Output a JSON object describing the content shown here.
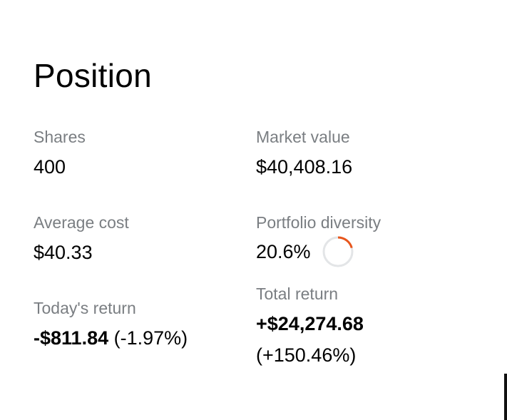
{
  "position": {
    "title": "Position",
    "shares": {
      "label": "Shares",
      "value": "400"
    },
    "market_value": {
      "label": "Market value",
      "value": "$40,408.16"
    },
    "average_cost": {
      "label": "Average cost",
      "value": "$40.33"
    },
    "portfolio_diversity": {
      "label": "Portfolio diversity",
      "value": "20.6%",
      "fraction": 0.206,
      "ring_color": "#e8561c",
      "track_color": "#e3e5e7"
    },
    "todays_return": {
      "label": "Today's return",
      "amount": "-$811.84",
      "percent": "(-1.97%)"
    },
    "total_return": {
      "label": "Total return",
      "amount": "+$24,274.68",
      "percent": "(+150.46%)"
    }
  }
}
